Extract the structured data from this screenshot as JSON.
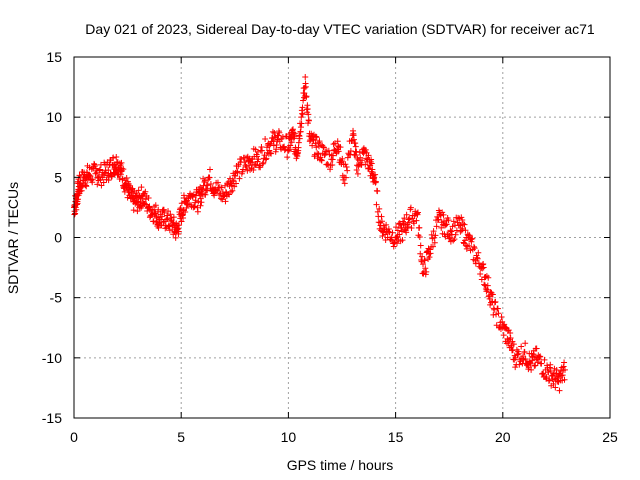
{
  "chart_data": {
    "type": "scatter",
    "title": "Day 021 of 2023, Sidereal Day-to-day VTEC variation (SDTVAR) for receiver ac71",
    "xlabel": "GPS time / hours",
    "ylabel": "SDTVAR / TECUs",
    "xlim": [
      0,
      25
    ],
    "ylim": [
      -15,
      15
    ],
    "x_ticks": [
      0,
      5,
      10,
      15,
      20,
      25
    ],
    "x_tick_labels": [
      "0",
      "5",
      "10",
      "15",
      "20",
      "25"
    ],
    "y_ticks": [
      -15,
      -10,
      -5,
      0,
      5,
      10,
      15
    ],
    "y_tick_labels": [
      "-15",
      "-10",
      "-5",
      "0",
      "5",
      "10",
      "15"
    ],
    "grid": true,
    "marker": "+",
    "color": "#ff0000",
    "series": [
      {
        "name": "SDTVAR",
        "x": [
          0.0,
          0.1,
          0.2,
          0.3,
          0.5,
          0.7,
          1.0,
          1.3,
          1.6,
          1.8,
          2.0,
          2.2,
          2.4,
          2.6,
          2.8,
          3.0,
          3.2,
          3.5,
          3.8,
          4.0,
          4.3,
          4.6,
          4.8,
          5.0,
          5.2,
          5.5,
          5.8,
          6.0,
          6.3,
          6.6,
          7.0,
          7.3,
          7.6,
          8.0,
          8.3,
          8.6,
          9.0,
          9.3,
          9.6,
          10.0,
          10.2,
          10.4,
          10.6,
          10.8,
          11.0,
          11.3,
          11.6,
          12.0,
          12.3,
          12.6,
          13.0,
          13.2,
          13.5,
          13.8,
          14.0,
          14.3,
          14.6,
          15.0,
          15.3,
          15.6,
          16.0,
          16.3,
          16.6,
          17.0,
          17.3,
          17.6,
          18.0,
          18.3,
          18.6,
          19.0,
          19.3,
          19.6,
          20.0,
          20.3,
          20.6,
          21.0,
          21.3,
          21.6,
          22.0,
          22.3,
          22.6,
          22.9
        ],
        "y": [
          2.5,
          3.0,
          4.0,
          4.5,
          5.0,
          5.2,
          5.3,
          5.2,
          5.6,
          6.0,
          6.2,
          5.5,
          4.5,
          3.5,
          3.0,
          3.0,
          3.5,
          2.5,
          2.0,
          1.5,
          1.5,
          1.0,
          0.5,
          2.0,
          3.0,
          3.5,
          3.0,
          4.0,
          5.0,
          4.0,
          3.5,
          4.5,
          5.5,
          6.0,
          6.5,
          6.5,
          7.5,
          8.0,
          8.0,
          7.5,
          8.5,
          7.0,
          10.0,
          12.8,
          8.0,
          7.5,
          7.0,
          6.5,
          8.0,
          5.0,
          8.5,
          6.0,
          7.0,
          6.0,
          5.0,
          1.0,
          0.5,
          0.0,
          0.5,
          1.5,
          2.0,
          -3.0,
          -1.0,
          1.5,
          1.0,
          0.5,
          1.0,
          0.0,
          -1.0,
          -2.5,
          -4.0,
          -6.0,
          -7.5,
          -8.5,
          -10.0,
          -9.5,
          -10.5,
          -10.0,
          -11.0,
          -11.5,
          -12.0,
          -11.0
        ]
      }
    ]
  }
}
